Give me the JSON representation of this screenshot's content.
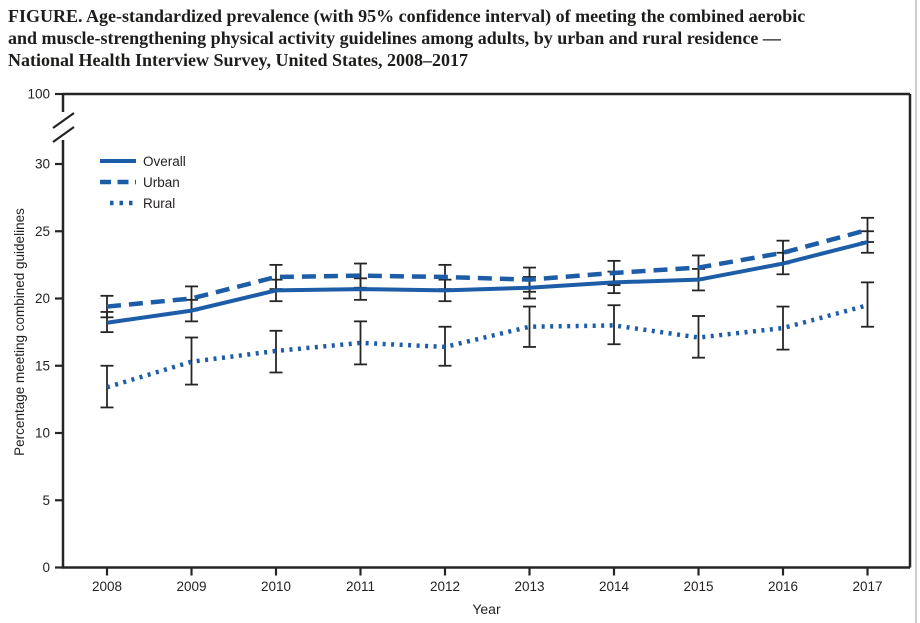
{
  "figure": {
    "title_lines": [
      "FIGURE. Age-standardized prevalence (with 95% confidence interval) of meeting the combined aerobic",
      "and muscle-strengthening physical activity guidelines among adults, by urban and rural residence  —",
      "National Health Interview Survey, United States, 2008–2017"
    ]
  },
  "chart_data": {
    "type": "line",
    "title": "Age-standardized prevalence (with 95% confidence interval) of meeting the combined aerobic and muscle-strengthening physical activity guidelines among adults, by urban and rural residence — National Health Interview Survey, United States, 2008–2017",
    "xlabel": "Year",
    "ylabel": "Percentage meeting combined guidelines",
    "x": [
      2008,
      2009,
      2010,
      2011,
      2012,
      2013,
      2014,
      2015,
      2016,
      2017
    ],
    "y_ticks": [
      0,
      5,
      10,
      15,
      20,
      25,
      30
    ],
    "y_top_tick": 100,
    "y_axis_break": true,
    "ylim": [
      0,
      100
    ],
    "grid": false,
    "legend_position": "top-left",
    "series": [
      {
        "name": "Overall",
        "style": "solid",
        "values": [
          18.2,
          19.1,
          20.6,
          20.7,
          20.6,
          20.8,
          21.2,
          21.4,
          22.6,
          24.2
        ],
        "ci_low": [
          17.5,
          18.3,
          19.8,
          19.9,
          19.8,
          20.0,
          20.4,
          20.6,
          21.8,
          23.4
        ],
        "ci_high": [
          19.0,
          19.9,
          21.4,
          21.5,
          21.4,
          21.6,
          22.0,
          22.2,
          23.4,
          25.0
        ]
      },
      {
        "name": "Urban",
        "style": "dashed",
        "values": [
          19.4,
          20.0,
          21.6,
          21.7,
          21.6,
          21.4,
          21.9,
          22.3,
          23.4,
          25.1
        ],
        "ci_low": [
          18.6,
          19.1,
          20.7,
          20.8,
          20.7,
          20.5,
          21.0,
          21.4,
          22.6,
          24.2
        ],
        "ci_high": [
          20.2,
          20.9,
          22.5,
          22.6,
          22.5,
          22.3,
          22.8,
          23.2,
          24.3,
          26.0
        ]
      },
      {
        "name": "Rural",
        "style": "dotted",
        "values": [
          13.4,
          15.3,
          16.1,
          16.7,
          16.4,
          17.9,
          18.0,
          17.1,
          17.8,
          19.5
        ],
        "ci_low": [
          11.9,
          13.6,
          14.5,
          15.1,
          15.0,
          16.4,
          16.6,
          15.6,
          16.2,
          17.9
        ],
        "ci_high": [
          15.0,
          17.1,
          17.6,
          18.3,
          17.9,
          19.4,
          19.5,
          18.7,
          19.4,
          21.2
        ]
      }
    ],
    "colors": {
      "line_blue": "#1d5ca7",
      "error_bar": "#262524",
      "text": "#231f20",
      "title_text": "#1d1d1b",
      "page_border": "#cccccc"
    }
  }
}
